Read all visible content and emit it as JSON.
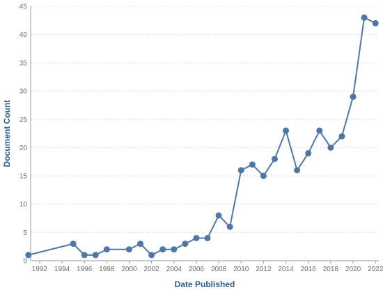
{
  "chart_data": {
    "type": "line",
    "xlabel": "Date Published",
    "ylabel": "Document Count",
    "xlim": [
      1991.2,
      2022.3
    ],
    "ylim": [
      0,
      45
    ],
    "x_ticks": [
      1992,
      1994,
      1996,
      1998,
      2000,
      2002,
      2004,
      2006,
      2008,
      2010,
      2012,
      2014,
      2016,
      2018,
      2020,
      2022
    ],
    "y_ticks": [
      0,
      5,
      10,
      15,
      20,
      25,
      30,
      35,
      40,
      45
    ],
    "grid": true,
    "series": [
      {
        "x": [
          1991,
          1995,
          1996,
          1997,
          1998,
          2000,
          2001,
          2002,
          2003,
          2004,
          2005,
          2006,
          2007,
          2008,
          2009,
          2010,
          2011,
          2012,
          2013,
          2014,
          2015,
          2016,
          2017,
          2018,
          2019,
          2020,
          2021,
          2022
        ],
        "y": [
          1,
          3,
          1,
          1,
          2,
          2,
          3,
          1,
          2,
          2,
          3,
          4,
          4,
          8,
          6,
          16,
          17,
          15,
          18,
          23,
          16,
          19,
          23,
          20,
          22,
          29,
          43,
          42
        ]
      }
    ],
    "colors": {
      "series": "#4f76a4",
      "axis_title": "#2c5e88"
    }
  }
}
